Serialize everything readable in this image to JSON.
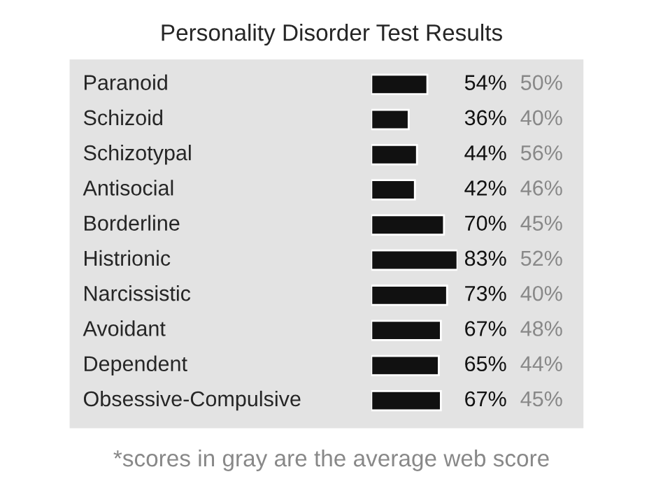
{
  "chart_data": [
    {
      "type": "bar",
      "orientation": "horizontal",
      "title": "Personality Disorder Test Results",
      "categories": [
        "Paranoid",
        "Schizoid",
        "Schizotypal",
        "Antisocial",
        "Borderline",
        "Histrionic",
        "Narcissistic",
        "Avoidant",
        "Dependent",
        "Obsessive-Compulsive"
      ],
      "series": [
        {
          "color": "#111111",
          "values": [
            54,
            36,
            44,
            42,
            70,
            83,
            73,
            67,
            65,
            67
          ],
          "value_labels": [
            "54%",
            "36%",
            "44%",
            "42%",
            "70%",
            "83%",
            "73%",
            "67%",
            "65%",
            "67%"
          ]
        }
      ]
    },
    {
      "type": "other",
      "series": [
        {
          "color": "#888888",
          "values": [
            50,
            40,
            56,
            46,
            45,
            52,
            40,
            48,
            44,
            45
          ],
          "value_labels": [
            "50%",
            "40%",
            "56%",
            "46%",
            "45%",
            "52%",
            "40%",
            "48%",
            "44%",
            "45%"
          ]
        }
      ],
      "annotations": [
        "*scores in gray are the average web score"
      ]
    }
  ]
}
